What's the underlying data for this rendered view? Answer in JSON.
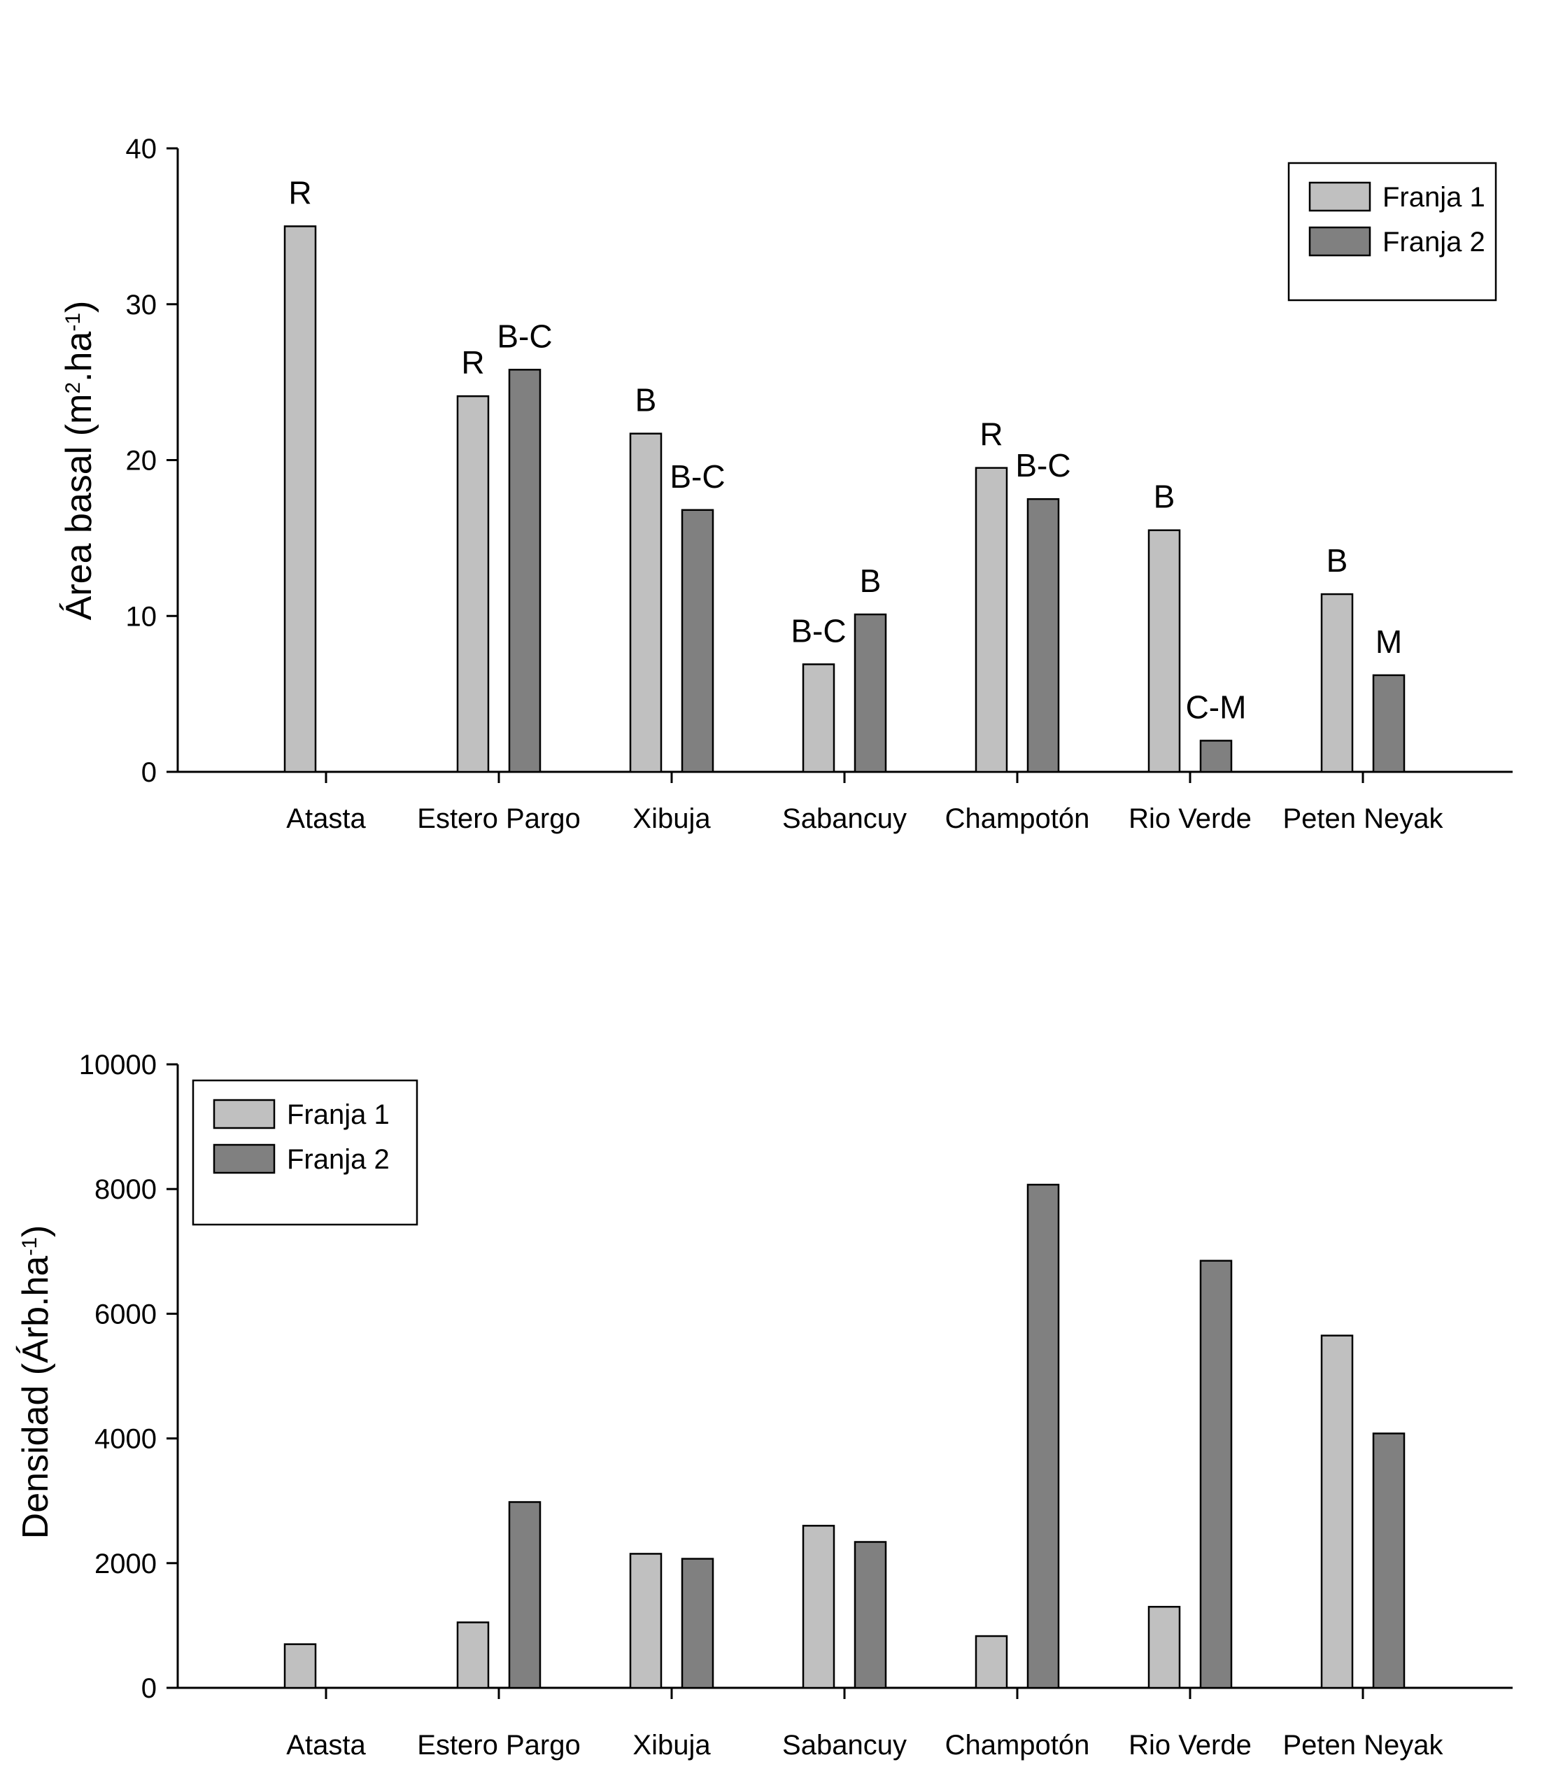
{
  "colors": {
    "franja1": "#c0c0c0",
    "franja2": "#808080",
    "axis": "#000000"
  },
  "chart_data": [
    {
      "type": "bar",
      "categories": [
        "Atasta",
        "Estero Pargo",
        "Xibuja",
        "Sabancuy",
        "Champotón",
        "Rio Verde",
        "Peten Neyak"
      ],
      "series": [
        {
          "name": "Franja 1",
          "values": [
            35.0,
            24.1,
            21.7,
            6.9,
            19.5,
            15.5,
            11.4
          ]
        },
        {
          "name": "Franja 2",
          "values": [
            null,
            25.8,
            16.8,
            10.1,
            17.5,
            2.0,
            6.2
          ]
        }
      ],
      "annotations": {
        "Franja 1": [
          "R",
          "R",
          "B",
          "B-C",
          "R",
          "B",
          "B"
        ],
        "Franja 2": [
          null,
          "B-C",
          "B-C",
          "B",
          "B-C",
          "C-M",
          "M"
        ]
      },
      "title": "",
      "xlabel": "",
      "ylabel": {
        "main": "Área basal (m",
        "sup1": "2",
        "mid": ".ha",
        "sup2": "-1",
        "end": ")"
      },
      "ylim": [
        0,
        40
      ],
      "yticks": [
        0,
        10,
        20,
        30,
        40
      ],
      "grid": false,
      "legend_position": "top-right"
    },
    {
      "type": "bar",
      "categories": [
        "Atasta",
        "Estero Pargo",
        "Xibuja",
        "Sabancuy",
        "Champotón",
        "Rio Verde",
        "Peten Neyak"
      ],
      "series": [
        {
          "name": "Franja 1",
          "values": [
            700,
            1050,
            2150,
            2600,
            830,
            1300,
            5650
          ]
        },
        {
          "name": "Franja 2",
          "values": [
            null,
            2980,
            2070,
            2340,
            8070,
            6850,
            4080
          ]
        }
      ],
      "title": "",
      "xlabel": "",
      "ylabel": {
        "main": "Densidad (Árb.ha",
        "sup2": "-1",
        "end": ")"
      },
      "ylim": [
        0,
        10000
      ],
      "yticks": [
        0,
        2000,
        4000,
        6000,
        8000,
        10000
      ],
      "grid": false,
      "legend_position": "top-left"
    }
  ]
}
